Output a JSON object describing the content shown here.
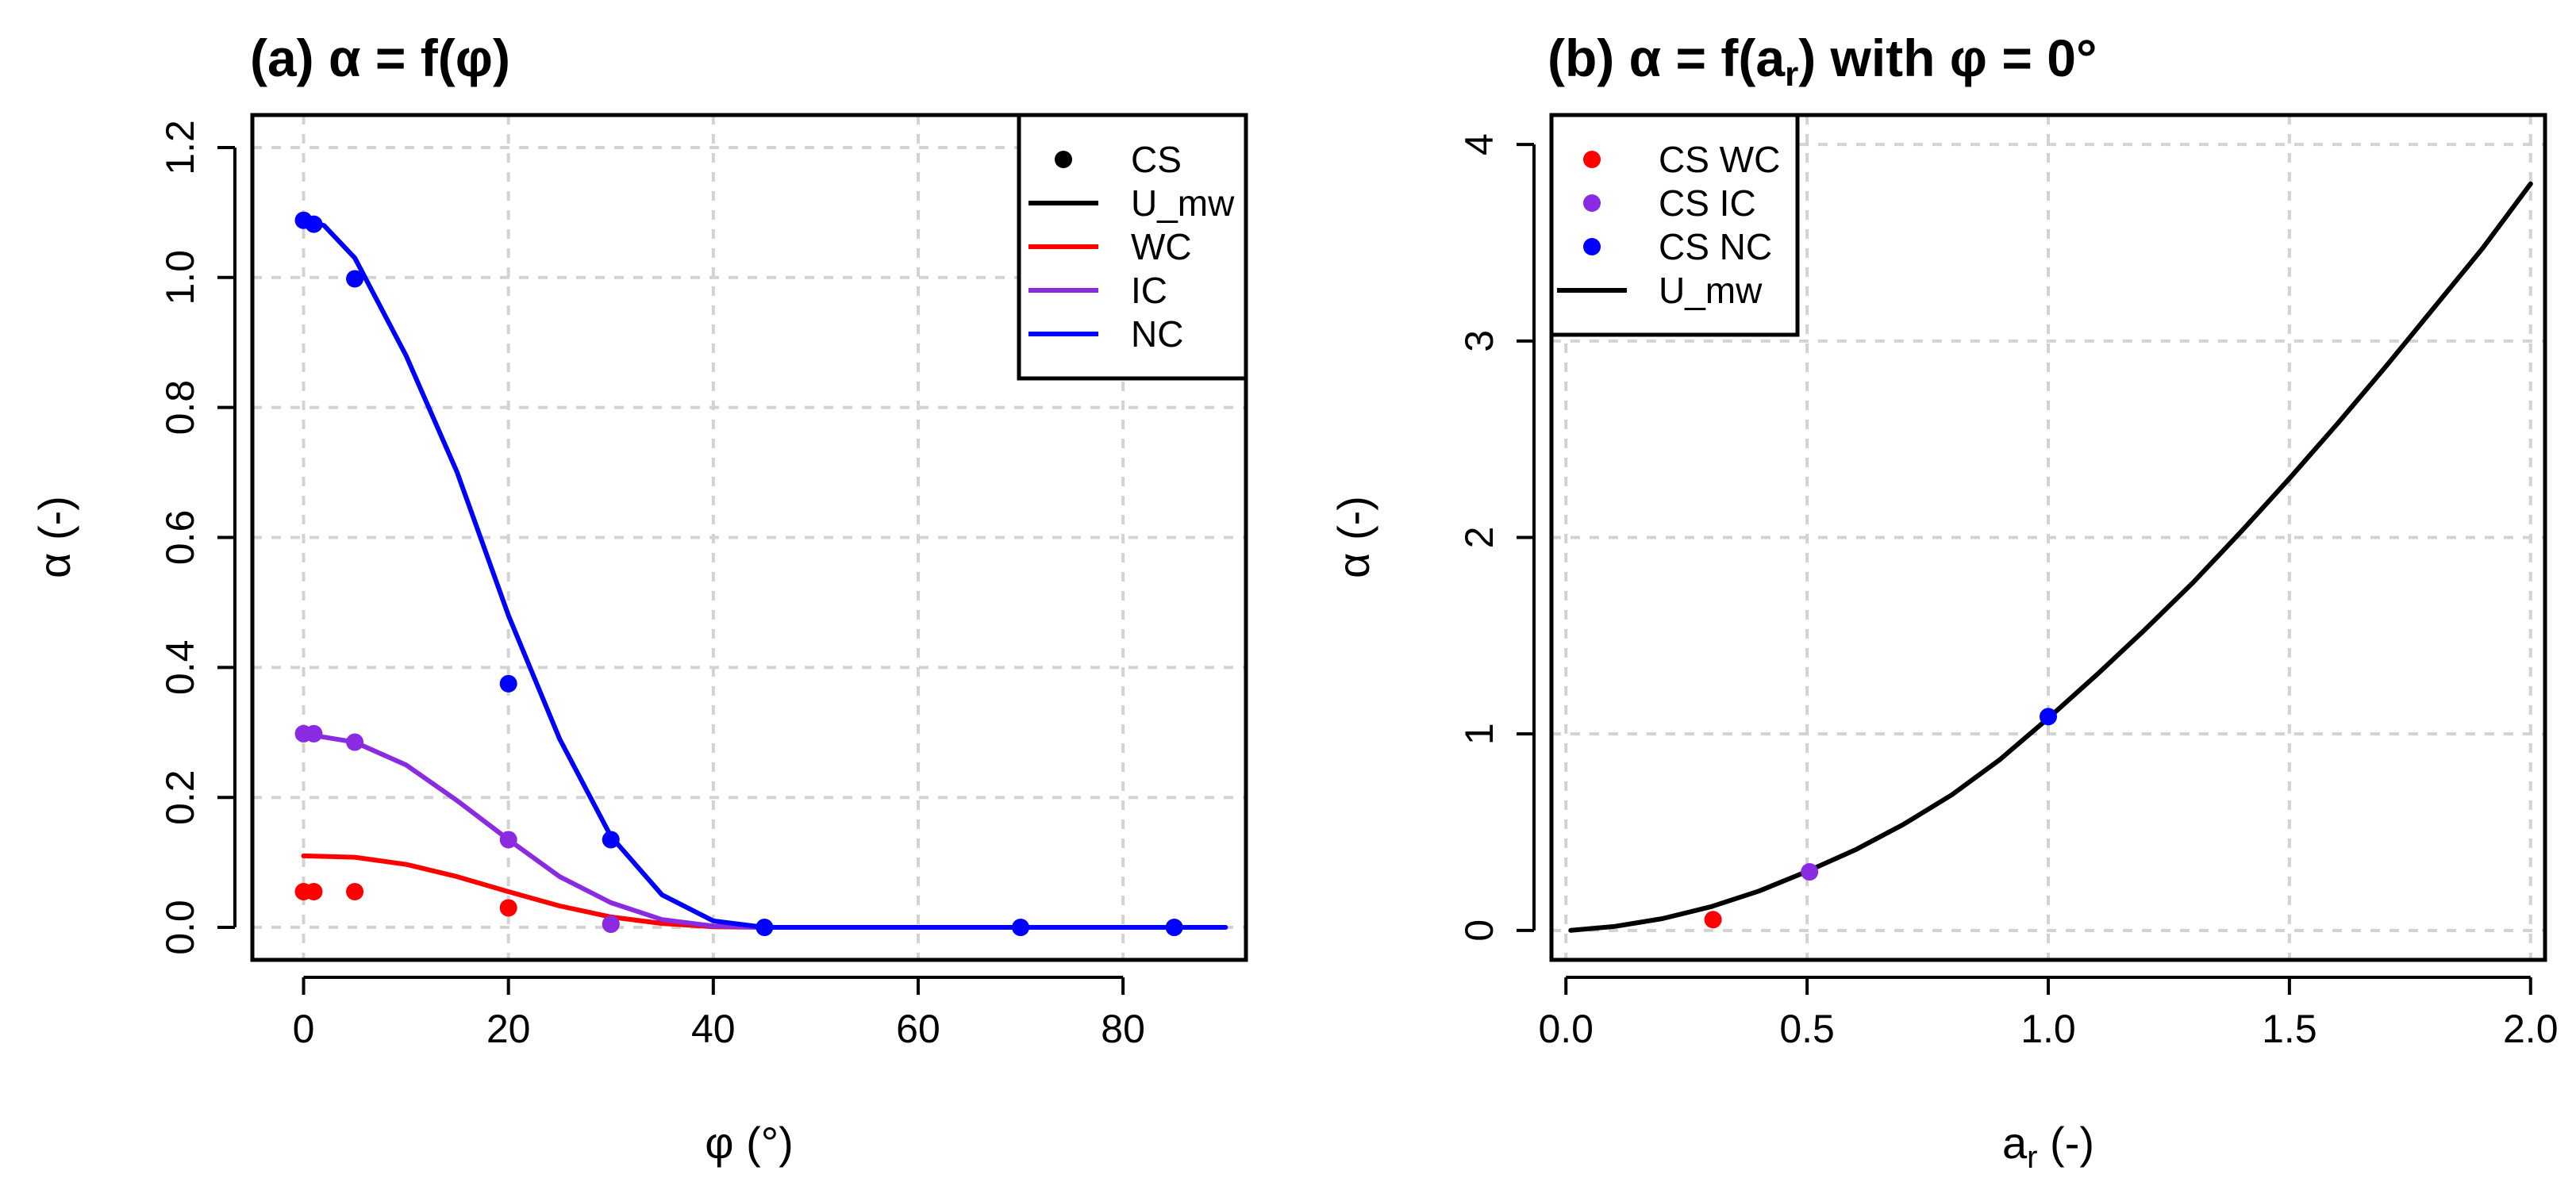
{
  "chart_data": [
    {
      "id": "a",
      "type": "line",
      "title": "(a) α = f(φ)",
      "xlabel": "φ (°)",
      "ylabel": "α (-)",
      "xlim": [
        -5,
        92
      ],
      "ylim": [
        -0.05,
        1.25
      ],
      "xticks": [
        0,
        20,
        40,
        60,
        80
      ],
      "yticks": [
        0.0,
        0.2,
        0.4,
        0.6,
        0.8,
        1.0,
        1.2
      ],
      "xtick_labels": [
        "0",
        "20",
        "40",
        "60",
        "80"
      ],
      "ytick_labels": [
        "0.0",
        "0.2",
        "0.4",
        "0.6",
        "0.8",
        "1.0",
        "1.2"
      ],
      "grid": true,
      "legend_position": "top-right",
      "legend": [
        {
          "label": "CS",
          "kind": "point",
          "color": "#000000"
        },
        {
          "label": "U_mw",
          "kind": "line",
          "color": "#000000"
        },
        {
          "label": "WC",
          "kind": "line",
          "color": "#ff0000"
        },
        {
          "label": "IC",
          "kind": "line",
          "color": "#8a2be2"
        },
        {
          "label": "NC",
          "kind": "line",
          "color": "#0000ff"
        }
      ],
      "series": [
        {
          "name": "WC",
          "kind": "line",
          "color": "#ff0000",
          "x": [
            0,
            5,
            10,
            15,
            20,
            25,
            30,
            35,
            40,
            45,
            50,
            60,
            70,
            80,
            90
          ],
          "y": [
            0.11,
            0.108,
            0.097,
            0.078,
            0.055,
            0.033,
            0.016,
            0.006,
            0.001,
            0,
            0,
            0,
            0,
            0,
            0
          ]
        },
        {
          "name": "IC",
          "kind": "line",
          "color": "#8a2be2",
          "x": [
            0,
            5,
            10,
            15,
            20,
            25,
            30,
            35,
            40,
            45,
            50,
            60,
            70,
            80,
            90
          ],
          "y": [
            0.298,
            0.285,
            0.25,
            0.195,
            0.135,
            0.078,
            0.038,
            0.012,
            0.002,
            0,
            0,
            0,
            0,
            0,
            0
          ]
        },
        {
          "name": "NC",
          "kind": "line",
          "color": "#0000ff",
          "x": [
            0,
            2,
            5,
            10,
            15,
            20,
            25,
            30,
            35,
            40,
            45,
            50,
            60,
            70,
            80,
            90
          ],
          "y": [
            1.088,
            1.08,
            1.03,
            0.88,
            0.7,
            0.48,
            0.29,
            0.14,
            0.05,
            0.01,
            0,
            0,
            0,
            0,
            0,
            0
          ]
        },
        {
          "name": "CS WC",
          "kind": "point",
          "color": "#ff0000",
          "x": [
            0,
            1,
            5,
            20,
            30
          ],
          "y": [
            0.055,
            0.055,
            0.055,
            0.03,
            0.005
          ]
        },
        {
          "name": "CS IC",
          "kind": "point",
          "color": "#8a2be2",
          "x": [
            0,
            1,
            5,
            20,
            30
          ],
          "y": [
            0.298,
            0.298,
            0.285,
            0.135,
            0.005
          ]
        },
        {
          "name": "CS NC",
          "kind": "point",
          "color": "#0000ff",
          "x": [
            0,
            1,
            5,
            20,
            30,
            45,
            70,
            85
          ],
          "y": [
            1.088,
            1.082,
            0.998,
            0.375,
            0.135,
            0.0,
            0.0,
            0.0
          ]
        }
      ]
    },
    {
      "id": "b",
      "type": "line",
      "title_parts": [
        "(b) α = f(a",
        "r",
        ") with φ = 0°"
      ],
      "xlabel_parts": [
        "a",
        "r",
        " (-)"
      ],
      "ylabel": "α (-)",
      "xlim": [
        -0.03,
        2.03
      ],
      "ylim": [
        -0.15,
        4.15
      ],
      "xticks": [
        0.0,
        0.5,
        1.0,
        1.5,
        2.0
      ],
      "yticks": [
        0,
        1,
        2,
        3,
        4
      ],
      "xtick_labels": [
        "0.0",
        "0.5",
        "1.0",
        "1.5",
        "2.0"
      ],
      "ytick_labels": [
        "0",
        "1",
        "2",
        "3",
        "4"
      ],
      "grid": true,
      "legend_position": "top-left",
      "legend": [
        {
          "label": "CS WC",
          "kind": "point",
          "color": "#ff0000"
        },
        {
          "label": "CS IC",
          "kind": "point",
          "color": "#8a2be2"
        },
        {
          "label": "CS NC",
          "kind": "point",
          "color": "#0000ff"
        },
        {
          "label": "U_mw",
          "kind": "line",
          "color": "#000000"
        }
      ],
      "series": [
        {
          "name": "U_mw",
          "kind": "line",
          "color": "#000000",
          "x": [
            0.01,
            0.1,
            0.2,
            0.3,
            0.4,
            0.5,
            0.6,
            0.7,
            0.8,
            0.9,
            1.0,
            1.1,
            1.2,
            1.3,
            1.4,
            1.5,
            1.6,
            1.7,
            1.8,
            1.9,
            2.0
          ],
          "y": [
            0.0,
            0.02,
            0.06,
            0.12,
            0.2,
            0.3,
            0.41,
            0.54,
            0.69,
            0.87,
            1.08,
            1.3,
            1.53,
            1.77,
            2.03,
            2.3,
            2.58,
            2.87,
            3.17,
            3.47,
            3.8
          ]
        },
        {
          "name": "CS WC",
          "kind": "point",
          "color": "#ff0000",
          "x": [
            0.305
          ],
          "y": [
            0.055
          ]
        },
        {
          "name": "CS IC",
          "kind": "point",
          "color": "#8a2be2",
          "x": [
            0.505
          ],
          "y": [
            0.298
          ]
        },
        {
          "name": "CS NC",
          "kind": "point",
          "color": "#0000ff",
          "x": [
            1.0
          ],
          "y": [
            1.088
          ]
        }
      ]
    }
  ]
}
